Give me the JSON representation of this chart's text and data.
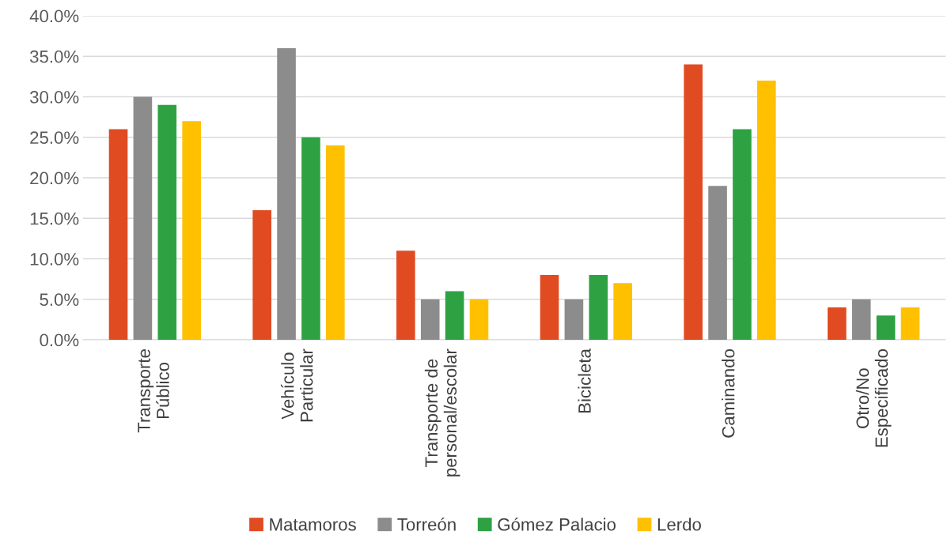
{
  "chart_data": {
    "type": "bar",
    "categories": [
      "Transporte\nPúblico",
      "Vehículo\nParticular",
      "Transporte de\npersonal/escolar",
      "Bicicleta",
      "Caminando",
      "Otro/No\nEspecificado"
    ],
    "series": [
      {
        "name": "Matamoros",
        "color": "#e04b22",
        "values": [
          26,
          16,
          11,
          8,
          34,
          4
        ]
      },
      {
        "name": "Torreón",
        "color": "#8c8c8c",
        "values": [
          30,
          36,
          5,
          5,
          19,
          5
        ]
      },
      {
        "name": "Gómez Palacio",
        "color": "#2ea243",
        "values": [
          29,
          25,
          6,
          8,
          26,
          3
        ]
      },
      {
        "name": "Lerdo",
        "color": "#ffc000",
        "values": [
          27,
          24,
          5,
          7,
          32,
          4
        ]
      }
    ],
    "ylim": [
      0,
      40
    ],
    "yticks": [
      {
        "value": 0,
        "label": "0.0%"
      },
      {
        "value": 5,
        "label": "5.0%"
      },
      {
        "value": 10,
        "label": "10.0%"
      },
      {
        "value": 15,
        "label": "15.0%"
      },
      {
        "value": 20,
        "label": "20.0%"
      },
      {
        "value": 25,
        "label": "25.0%"
      },
      {
        "value": 30,
        "label": "30.0%"
      },
      {
        "value": 35,
        "label": "35.0%"
      },
      {
        "value": 40,
        "label": "40.0%"
      }
    ],
    "grid": "y",
    "legend": "bottom"
  }
}
